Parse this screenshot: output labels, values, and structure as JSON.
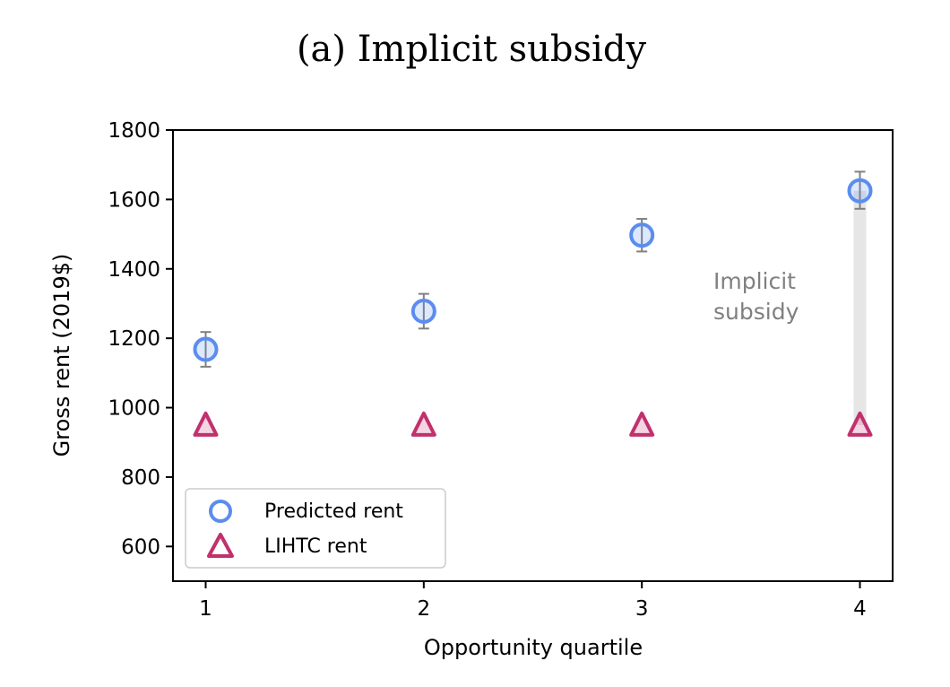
{
  "chart_data": {
    "type": "scatter",
    "title": "(a) Implicit subsidy",
    "xlabel": "Opportunity quartile",
    "ylabel": "Gross rent (2019$)",
    "categories": [
      "1",
      "2",
      "3",
      "4"
    ],
    "x": [
      1,
      2,
      3,
      4
    ],
    "xlim": [
      0.85,
      4.15
    ],
    "ylim": [
      500,
      1800
    ],
    "yticks": [
      600,
      800,
      1000,
      1200,
      1400,
      1600,
      1800
    ],
    "grid": false,
    "legend_position": "lower-left",
    "series": [
      {
        "name": "Predicted rent",
        "marker": "circle",
        "color": "#5b8def",
        "values": [
          1168,
          1278,
          1497,
          1625
        ],
        "error_low": [
          1118,
          1228,
          1450,
          1573
        ],
        "error_high": [
          1218,
          1328,
          1544,
          1680
        ]
      },
      {
        "name": "LIHTC rent",
        "marker": "triangle",
        "color": "#c2306e",
        "values": [
          950,
          950,
          950,
          950
        ]
      }
    ],
    "annotations": [
      {
        "text_lines": [
          "Implicit",
          "subsidy"
        ],
        "color": "#808080"
      }
    ],
    "subsidy_bar": {
      "x": 4,
      "from": 950,
      "to": 1625,
      "color": "#e6e6e6"
    }
  }
}
